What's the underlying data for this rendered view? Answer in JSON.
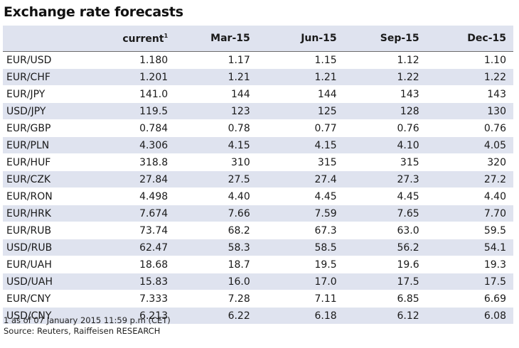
{
  "title": "Exchange rate forecasts",
  "table": {
    "headers": [
      "",
      "current",
      "Mar-15",
      "Jun-15",
      "Sep-15",
      "Dec-15"
    ],
    "current_footnote_mark": "1",
    "rows": [
      [
        "EUR/USD",
        "1.180",
        "1.17",
        "1.15",
        "1.12",
        "1.10"
      ],
      [
        "EUR/CHF",
        "1.201",
        "1.21",
        "1.21",
        "1.22",
        "1.22"
      ],
      [
        "EUR/JPY",
        "141.0",
        "144",
        "144",
        "143",
        "143"
      ],
      [
        "USD/JPY",
        "119.5",
        "123",
        "125",
        "128",
        "130"
      ],
      [
        "EUR/GBP",
        "0.784",
        "0.78",
        "0.77",
        "0.76",
        "0.76"
      ],
      [
        "EUR/PLN",
        "4.306",
        "4.15",
        "4.15",
        "4.10",
        "4.05"
      ],
      [
        "EUR/HUF",
        "318.8",
        "310",
        "315",
        "315",
        "320"
      ],
      [
        "EUR/CZK",
        "27.84",
        "27.5",
        "27.4",
        "27.3",
        "27.2"
      ],
      [
        "EUR/RON",
        "4.498",
        "4.40",
        "4.45",
        "4.45",
        "4.40"
      ],
      [
        "EUR/HRK",
        "7.674",
        "7.66",
        "7.59",
        "7.65",
        "7.70"
      ],
      [
        "EUR/RUB",
        "73.74",
        "68.2",
        "67.3",
        "63.0",
        "59.5"
      ],
      [
        "USD/RUB",
        "62.47",
        "58.3",
        "58.5",
        "56.2",
        "54.1"
      ],
      [
        "EUR/UAH",
        "18.68",
        "18.7",
        "19.5",
        "19.6",
        "19.3"
      ],
      [
        "USD/UAH",
        "15.83",
        "16.0",
        "17.0",
        "17.5",
        "17.5"
      ],
      [
        "EUR/CNY",
        "7.333",
        "7.28",
        "7.11",
        "6.85",
        "6.69"
      ],
      [
        "USD/CNY",
        "6.213",
        "6.22",
        "6.18",
        "6.12",
        "6.08"
      ]
    ]
  },
  "footnote": "1 as of 07 January 2015 11:59 p.m (CET)",
  "source": "Source: Reuters, Raiffeisen RESEARCH"
}
